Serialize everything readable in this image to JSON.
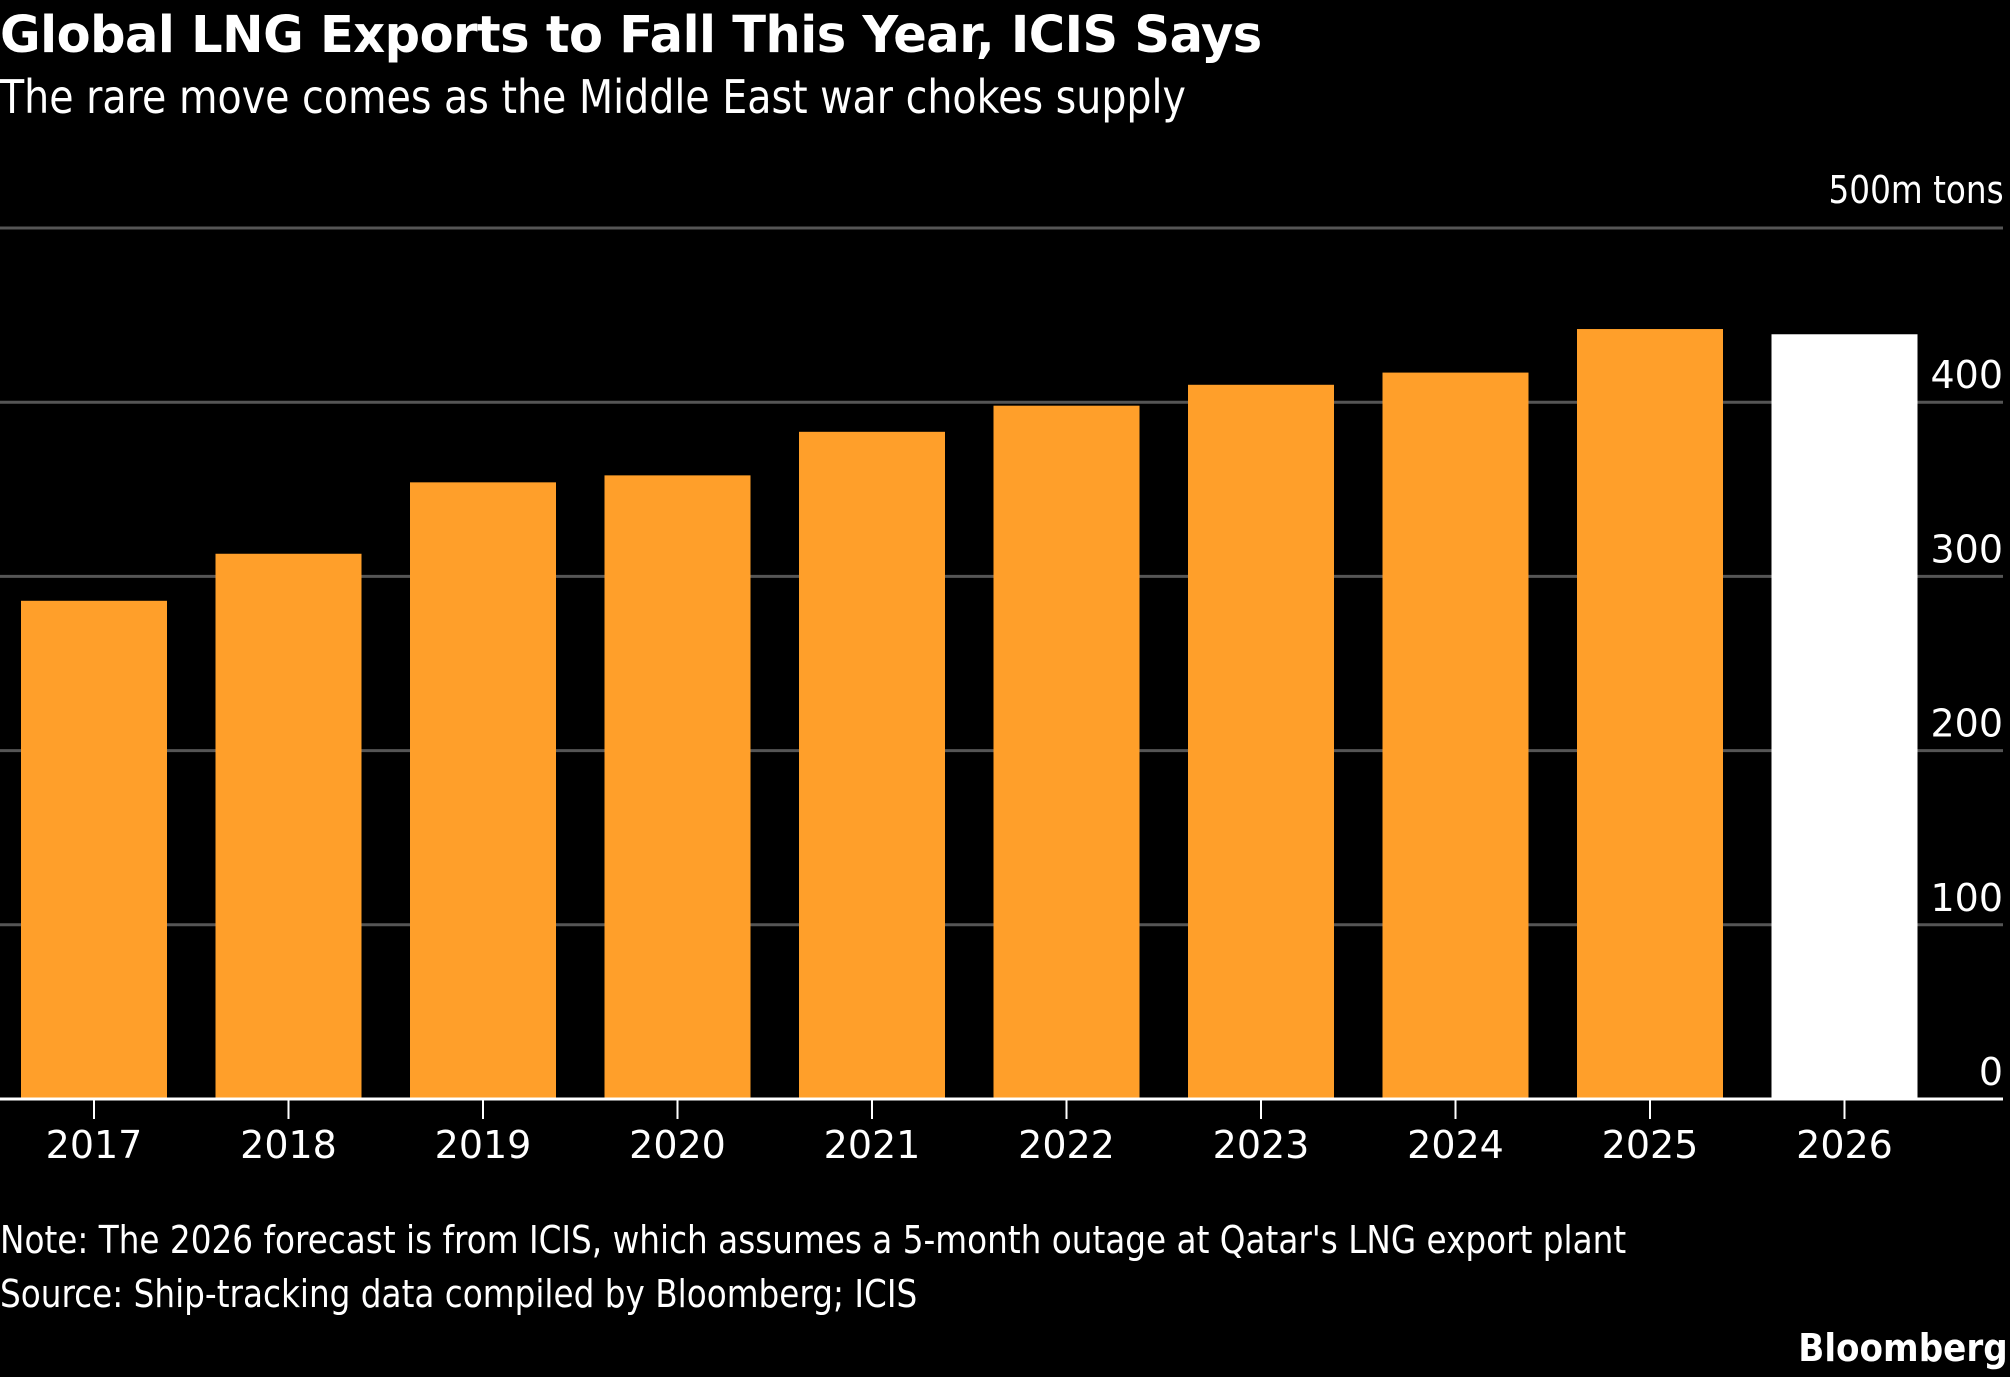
{
  "chart_data": {
    "type": "bar",
    "title": "Global LNG Exports to Fall This Year, ICIS Says",
    "subtitle": "The rare move comes as the Middle East war chokes supply",
    "unit_label": "500m tons",
    "xlabel": "",
    "ylabel": "",
    "categories": [
      "2017",
      "2018",
      "2019",
      "2020",
      "2021",
      "2022",
      "2023",
      "2024",
      "2025",
      "2026"
    ],
    "values": [
      286,
      313,
      354,
      358,
      383,
      398,
      410,
      417,
      442,
      439
    ],
    "highlight": {
      "category": "2026",
      "meaning": "ICIS forecast"
    },
    "ylim": [
      0,
      500
    ],
    "yticks": [
      0,
      100,
      200,
      300,
      400,
      500
    ],
    "ytick_labels": [
      "0",
      "100",
      "200",
      "300",
      "400",
      "500m tons"
    ],
    "y_axis_position": "right",
    "grid": true,
    "legend": "none",
    "colors": {
      "actual": "#ff9f2a",
      "forecast": "#ffffff",
      "background": "#000000",
      "grid": "#555555",
      "axis": "#ffffff"
    }
  },
  "footer": {
    "note": "Note: The 2026 forecast is from ICIS, which assumes a 5-month outage at Qatar's LNG export plant",
    "source": "Source: Ship-tracking data compiled by Bloomberg; ICIS",
    "brand": "Bloomberg"
  }
}
